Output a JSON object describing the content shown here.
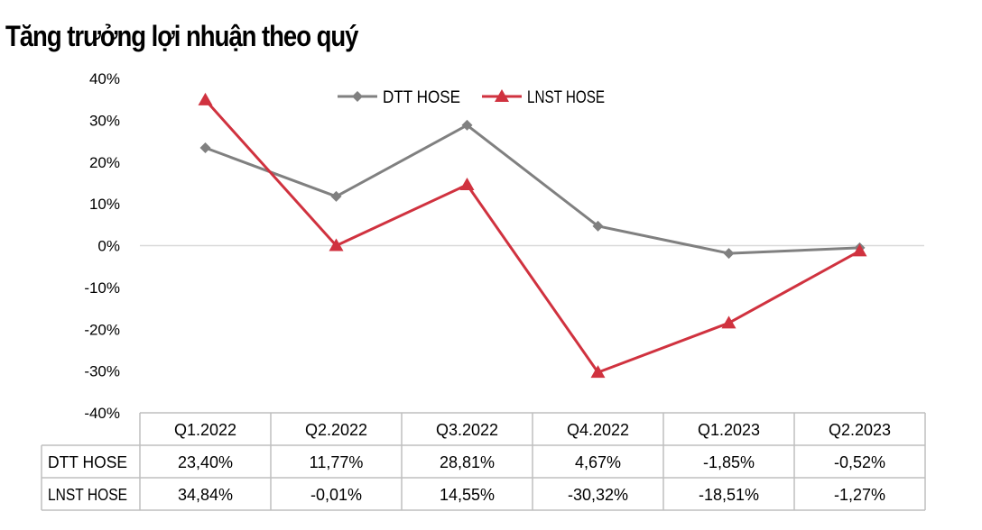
{
  "title": "Tăng trưởng lợi nhuận theo quý",
  "colors": {
    "dtt": "#808080",
    "lnst": "#D0323F",
    "zero_line": "#D9D9D9",
    "table_border": "#BFBFBF",
    "text": "#000000"
  },
  "chart_data": {
    "type": "line",
    "title": "Tăng trưởng lợi nhuận theo quý",
    "categories": [
      "Q1.2022",
      "Q2.2022",
      "Q3.2022",
      "Q4.2022",
      "Q1.2023",
      "Q2.2023"
    ],
    "series": [
      {
        "name": "DTT HOSE",
        "marker": "diamond",
        "values": [
          23.4,
          11.77,
          28.81,
          4.67,
          -1.85,
          -0.52
        ],
        "labels": [
          "23,40%",
          "11,77%",
          "28,81%",
          "4,67%",
          "-1,85%",
          "-0,52%"
        ]
      },
      {
        "name": "LNST HOSE",
        "marker": "triangle",
        "values": [
          34.84,
          -0.01,
          14.55,
          -30.32,
          -18.51,
          -1.27
        ],
        "labels": [
          "34,84%",
          "-0,01%",
          "14,55%",
          "-30,32%",
          "-18,51%",
          "-1,27%"
        ]
      }
    ],
    "ylim": [
      -40,
      40
    ],
    "yticks": [
      40,
      30,
      20,
      10,
      0,
      -10,
      -20,
      -30,
      -40
    ],
    "ytick_labels": [
      "40%",
      "30%",
      "20%",
      "10%",
      "0%",
      "-10%",
      "-20%",
      "-30%",
      "-40%"
    ],
    "xlabel": "",
    "ylabel": "",
    "grid": false,
    "legend_position": "top-center",
    "data_table": true
  }
}
